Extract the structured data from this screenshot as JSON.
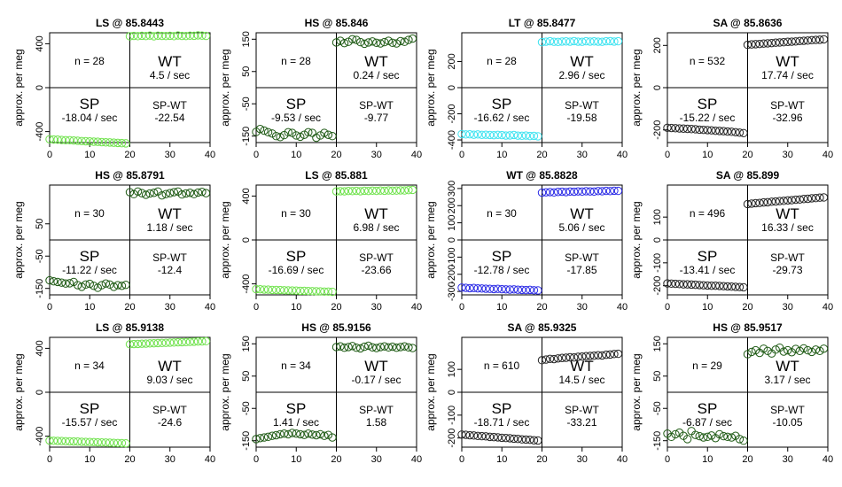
{
  "figure": {
    "ylabel": "approx. per meg"
  },
  "chart_data": [
    {
      "type": "scatter",
      "title": "LS @ 85.8443",
      "xlim": [
        0,
        40
      ],
      "ylim": [
        -500,
        500
      ],
      "xticks": [
        0,
        10,
        20,
        30,
        40
      ],
      "yticks": [
        -400,
        0,
        400
      ],
      "n": "n = 28",
      "wt_rate": "4.5 / sec",
      "sp_rate": "-18.04 / sec",
      "spwt_rate": "-22.54",
      "color": "#6fe24c",
      "sp_values": [
        -470,
        -472,
        -473,
        -476,
        -478,
        -478,
        -481,
        -483,
        -486,
        -488,
        -490,
        -492,
        -493,
        -496,
        -498,
        -499,
        -501,
        -503,
        -505,
        -507
      ],
      "wt_values": [
        468,
        471,
        469,
        472,
        470,
        474,
        468,
        473,
        471,
        470,
        472,
        469,
        475,
        471,
        470,
        473,
        472,
        476,
        474,
        471
      ]
    },
    {
      "type": "scatter",
      "title": "HS @ 85.846",
      "xlim": [
        0,
        40
      ],
      "ylim": [
        -170,
        170
      ],
      "xticks": [
        0,
        10,
        20,
        30,
        40
      ],
      "yticks": [
        -150,
        -50,
        50,
        150
      ],
      "n": "n = 28",
      "wt_rate": "0.24 / sec",
      "sp_rate": "-9.53 / sec",
      "spwt_rate": "-9.77",
      "color": "#1e5a14",
      "sp_values": [
        -137,
        -128,
        -133,
        -138,
        -142,
        -150,
        -153,
        -147,
        -138,
        -140,
        -148,
        -152,
        -146,
        -138,
        -140,
        -155,
        -148,
        -140,
        -146,
        -150
      ],
      "wt_values": [
        140,
        145,
        138,
        142,
        150,
        148,
        141,
        136,
        140,
        143,
        139,
        137,
        141,
        145,
        139,
        137,
        144,
        142,
        148,
        152
      ]
    },
    {
      "type": "scatter",
      "title": "LT @ 85.8477",
      "xlim": [
        0,
        40
      ],
      "ylim": [
        -420,
        420
      ],
      "xticks": [
        0,
        10,
        20,
        30,
        40
      ],
      "yticks": [
        -400,
        -200,
        0,
        200
      ],
      "n": "n = 28",
      "wt_rate": "2.96 / sec",
      "sp_rate": "-16.62 / sec",
      "spwt_rate": "-19.58",
      "color": "#3ee3f0",
      "sp_values": [
        -355,
        -358,
        -357,
        -360,
        -358,
        -361,
        -360,
        -362,
        -364,
        -361,
        -363,
        -366,
        -365,
        -362,
        -367,
        -368,
        -366,
        -370,
        -369,
        -372
      ],
      "wt_values": [
        348,
        352,
        355,
        351,
        350,
        353,
        354,
        352,
        356,
        352,
        351,
        355,
        353,
        354,
        352,
        351,
        355,
        356,
        353,
        355
      ]
    },
    {
      "type": "scatter",
      "title": "SA @ 85.8636",
      "xlim": [
        0,
        40
      ],
      "ylim": [
        -260,
        260
      ],
      "xticks": [
        0,
        10,
        20,
        30,
        40
      ],
      "yticks": [
        -200,
        0,
        200
      ],
      "n": "n = 532",
      "wt_rate": "17.74 / sec",
      "sp_rate": "-15.22 / sec",
      "spwt_rate": "-32.96",
      "color": "#222222",
      "sp_values": [
        -190,
        -191,
        -192,
        -193,
        -194,
        -195,
        -196,
        -197,
        -199,
        -200,
        -201,
        -202,
        -204,
        -205,
        -206,
        -208,
        -209,
        -211,
        -213,
        -215
      ],
      "wt_values": [
        203,
        205,
        206,
        207,
        209,
        210,
        211,
        213,
        214,
        215,
        217,
        218,
        219,
        221,
        222,
        223,
        225,
        226,
        227,
        229
      ]
    },
    {
      "type": "scatter",
      "title": "HS @ 85.8791",
      "xlim": [
        0,
        40
      ],
      "ylim": [
        -170,
        170
      ],
      "xticks": [
        0,
        10,
        20,
        30,
        40
      ],
      "yticks": [
        -150,
        -50,
        50
      ],
      "n": "n = 30",
      "wt_rate": "1.18 / sec",
      "sp_rate": "-11.22 / sec",
      "spwt_rate": "-12.4",
      "color": "#1e5a14",
      "sp_values": [
        -125,
        -128,
        -130,
        -132,
        -135,
        -134,
        -130,
        -140,
        -145,
        -138,
        -136,
        -142,
        -148,
        -140,
        -135,
        -138,
        -145,
        -140,
        -142,
        -139
      ],
      "wt_values": [
        148,
        142,
        150,
        145,
        140,
        144,
        146,
        150,
        138,
        142,
        145,
        148,
        150,
        141,
        144,
        146,
        142,
        147,
        149,
        145
      ]
    },
    {
      "type": "scatter",
      "title": "LS @ 85.881",
      "xlim": [
        0,
        40
      ],
      "ylim": [
        -500,
        500
      ],
      "xticks": [
        0,
        10,
        20,
        30,
        40
      ],
      "yticks": [
        -400,
        0,
        400
      ],
      "n": "n = 30",
      "wt_rate": "6.98 / sec",
      "sp_rate": "-16.69 / sec",
      "spwt_rate": "-23.66",
      "color": "#6fe24c",
      "sp_values": [
        -448,
        -449,
        -452,
        -452,
        -455,
        -455,
        -456,
        -458,
        -459,
        -460,
        -461,
        -463,
        -463,
        -465,
        -466,
        -467,
        -468,
        -470,
        -470,
        -472
      ],
      "wt_values": [
        442,
        444,
        443,
        446,
        445,
        447,
        444,
        448,
        446,
        449,
        447,
        450,
        448,
        451,
        449,
        450,
        452,
        451,
        454,
        456
      ]
    },
    {
      "type": "scatter",
      "title": "WT @ 85.8828",
      "xlim": [
        0,
        40
      ],
      "ylim": [
        -320,
        320
      ],
      "xticks": [
        0,
        10,
        20,
        30,
        40
      ],
      "yticks": [
        -300,
        -200,
        -100,
        0,
        100,
        200,
        300
      ],
      "n": "n = 30",
      "wt_rate": "5.06 / sec",
      "sp_rate": "-12.78 / sec",
      "spwt_rate": "-17.85",
      "color": "#2a2ae6",
      "sp_values": [
        -278,
        -279,
        -281,
        -280,
        -282,
        -283,
        -284,
        -285,
        -286,
        -285,
        -287,
        -288,
        -289,
        -288,
        -290,
        -291,
        -292,
        -291,
        -293,
        -294
      ],
      "wt_values": [
        276,
        278,
        279,
        277,
        280,
        281,
        279,
        282,
        281,
        283,
        282,
        284,
        283,
        282,
        285,
        284,
        286,
        285,
        287,
        286
      ]
    },
    {
      "type": "scatter",
      "title": "SA @ 85.899",
      "xlim": [
        0,
        40
      ],
      "ylim": [
        -240,
        240
      ],
      "xticks": [
        0,
        10,
        20,
        30,
        40
      ],
      "yticks": [
        -200,
        -100,
        0,
        100
      ],
      "n": "n = 496",
      "wt_rate": "16.33 / sec",
      "sp_rate": "-13.41 / sec",
      "spwt_rate": "-29.73",
      "color": "#222222",
      "sp_values": [
        -190,
        -191,
        -192,
        -193,
        -194,
        -194,
        -195,
        -196,
        -197,
        -198,
        -199,
        -200,
        -200,
        -201,
        -202,
        -203,
        -204,
        -205,
        -206,
        -207
      ],
      "wt_values": [
        157,
        159,
        161,
        162,
        164,
        165,
        167,
        168,
        170,
        171,
        173,
        174,
        176,
        177,
        179,
        180,
        182,
        183,
        185,
        186
      ]
    },
    {
      "type": "scatter",
      "title": "LS @ 85.9138",
      "xlim": [
        0,
        40
      ],
      "ylim": [
        -500,
        500
      ],
      "xticks": [
        0,
        10,
        20,
        30,
        40
      ],
      "yticks": [
        -400,
        0,
        400
      ],
      "n": "n = 34",
      "wt_rate": "9.03 / sec",
      "sp_rate": "-15.57 / sec",
      "spwt_rate": "-24.6",
      "color": "#6fe24c",
      "sp_values": [
        -440,
        -442,
        -443,
        -444,
        -446,
        -447,
        -448,
        -449,
        -451,
        -452,
        -453,
        -454,
        -456,
        -457,
        -458,
        -459,
        -461,
        -462,
        -463,
        -465
      ],
      "wt_values": [
        437,
        439,
        440,
        442,
        443,
        445,
        446,
        448,
        449,
        450,
        452,
        453,
        455,
        456,
        457,
        459,
        460,
        462,
        463,
        465
      ]
    },
    {
      "type": "scatter",
      "title": "HS @ 85.9156",
      "xlim": [
        0,
        40
      ],
      "ylim": [
        -170,
        170
      ],
      "xticks": [
        0,
        10,
        20,
        30,
        40
      ],
      "yticks": [
        -150,
        -50,
        50,
        150
      ],
      "n": "n = 34",
      "wt_rate": "-0.17 / sec",
      "sp_rate": "1.41 / sec",
      "spwt_rate": "1.58",
      "color": "#1e5a14",
      "sp_values": [
        -145,
        -142,
        -140,
        -138,
        -135,
        -133,
        -130,
        -128,
        -130,
        -126,
        -128,
        -130,
        -132,
        -128,
        -131,
        -133,
        -130,
        -135,
        -132,
        -140
      ],
      "wt_values": [
        140,
        142,
        138,
        140,
        143,
        138,
        136,
        141,
        144,
        139,
        137,
        140,
        142,
        139,
        141,
        138,
        140,
        142,
        139,
        137
      ]
    },
    {
      "type": "scatter",
      "title": "SA @ 85.9325",
      "xlim": [
        0,
        40
      ],
      "ylim": [
        -240,
        240
      ],
      "xticks": [
        0,
        10,
        20,
        30,
        40
      ],
      "yticks": [
        -200,
        -100,
        0,
        100
      ],
      "n": "n = 610",
      "wt_rate": "14.5 / sec",
      "sp_rate": "-18.71 / sec",
      "spwt_rate": "-33.21",
      "color": "#222222",
      "sp_values": [
        -185,
        -186,
        -188,
        -189,
        -191,
        -192,
        -193,
        -195,
        -196,
        -197,
        -199,
        -200,
        -201,
        -203,
        -204,
        -206,
        -207,
        -208,
        -210,
        -211
      ],
      "wt_values": [
        140,
        143,
        146,
        145,
        148,
        150,
        151,
        153,
        152,
        155,
        156,
        158,
        159,
        160,
        162,
        161,
        164,
        165,
        167,
        168
      ]
    },
    {
      "type": "scatter",
      "title": "HS @ 85.9517",
      "xlim": [
        0,
        40
      ],
      "ylim": [
        -170,
        170
      ],
      "xticks": [
        0,
        10,
        20,
        30,
        40
      ],
      "yticks": [
        -150,
        -50,
        50,
        150
      ],
      "n": "n = 29",
      "wt_rate": "3.17 / sec",
      "sp_rate": "-6.87 / sec",
      "spwt_rate": "-10.05",
      "color": "#1e5a14",
      "sp_values": [
        -128,
        -138,
        -130,
        -125,
        -135,
        -145,
        -120,
        -132,
        -136,
        -140,
        -138,
        -134,
        -142,
        -130,
        -136,
        -138,
        -140,
        -135,
        -145,
        -150
      ],
      "wt_values": [
        118,
        125,
        130,
        122,
        135,
        128,
        120,
        132,
        138,
        126,
        130,
        124,
        134,
        128,
        136,
        130,
        125,
        132,
        128,
        135
      ]
    }
  ]
}
